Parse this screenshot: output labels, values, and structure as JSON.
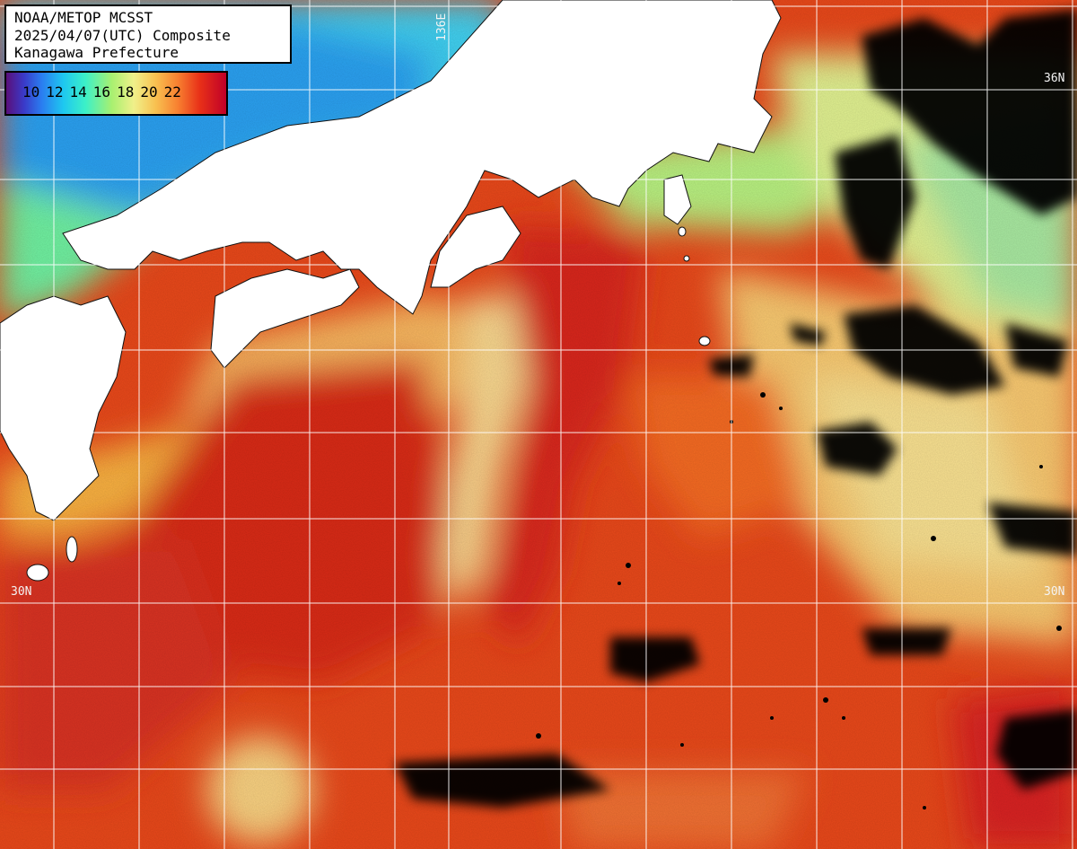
{
  "title": {
    "line1": "NOAA/METOP MCSST",
    "line2": "2025/04/07(UTC) Composite",
    "line3": "Kanagawa Prefecture"
  },
  "legend": {
    "ticks": [
      "10",
      "12",
      "14",
      "16",
      "18",
      "20",
      "22"
    ],
    "colormap": [
      "#5a0f7a",
      "#3a3ac8",
      "#2a7cf0",
      "#1ec8f0",
      "#3cf0c8",
      "#a8f070",
      "#f0f08a",
      "#f8c050",
      "#f88030",
      "#e83018",
      "#c00028"
    ]
  },
  "grid_labels": {
    "lon_136": "136E",
    "lat_36_right": "36N",
    "lat_30_left": "30N",
    "lat_30_right": "30N"
  },
  "colors": {
    "land": "#ffffff",
    "cloud_mask": "#000000",
    "gridline": "#ffffff",
    "warm_sea": "#e8481a",
    "kuroshio_core": "#d82a14",
    "cool_coastal": "#40d8f0",
    "mid_sea": "#f8c060"
  }
}
